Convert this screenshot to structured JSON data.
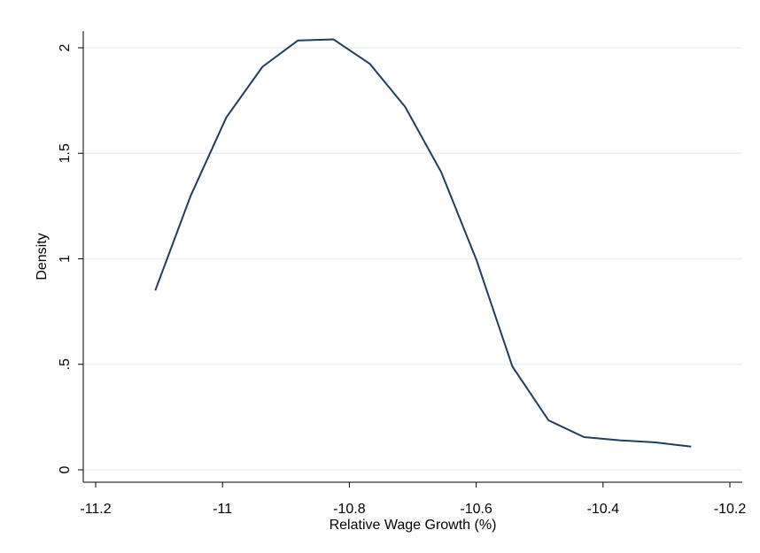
{
  "chart_data": {
    "type": "line",
    "title": "",
    "xlabel": "Relative Wage Growth (%)",
    "ylabel": "Density",
    "xlim": [
      -11.2,
      -10.2
    ],
    "ylim": [
      0,
      2.1
    ],
    "xticks": [
      -11.2,
      -11,
      -10.8,
      -10.6,
      -10.4,
      -10.2
    ],
    "xtick_labels": [
      "-11.2",
      "-11",
      "-10.8",
      "-10.6",
      "-10.4",
      "-10.2"
    ],
    "yticks": [
      0,
      0.5,
      1,
      1.5,
      2
    ],
    "ytick_labels": [
      "0",
      ".5",
      "1",
      "1.5",
      "2"
    ],
    "grid": "horizontal",
    "line_color": "#1f3d5c",
    "series": [
      {
        "x": [
          -11.106,
          -11.05,
          -10.994,
          -10.937,
          -10.881,
          -10.825,
          -10.768,
          -10.712,
          -10.655,
          -10.599,
          -10.543,
          -10.486,
          -10.43,
          -10.374,
          -10.317,
          -10.261
        ],
        "values": [
          0.85,
          1.3,
          1.67,
          1.91,
          2.035,
          2.04,
          1.925,
          1.72,
          1.41,
          0.99,
          0.49,
          0.235,
          0.155,
          0.14,
          0.13,
          0.11
        ]
      }
    ]
  }
}
